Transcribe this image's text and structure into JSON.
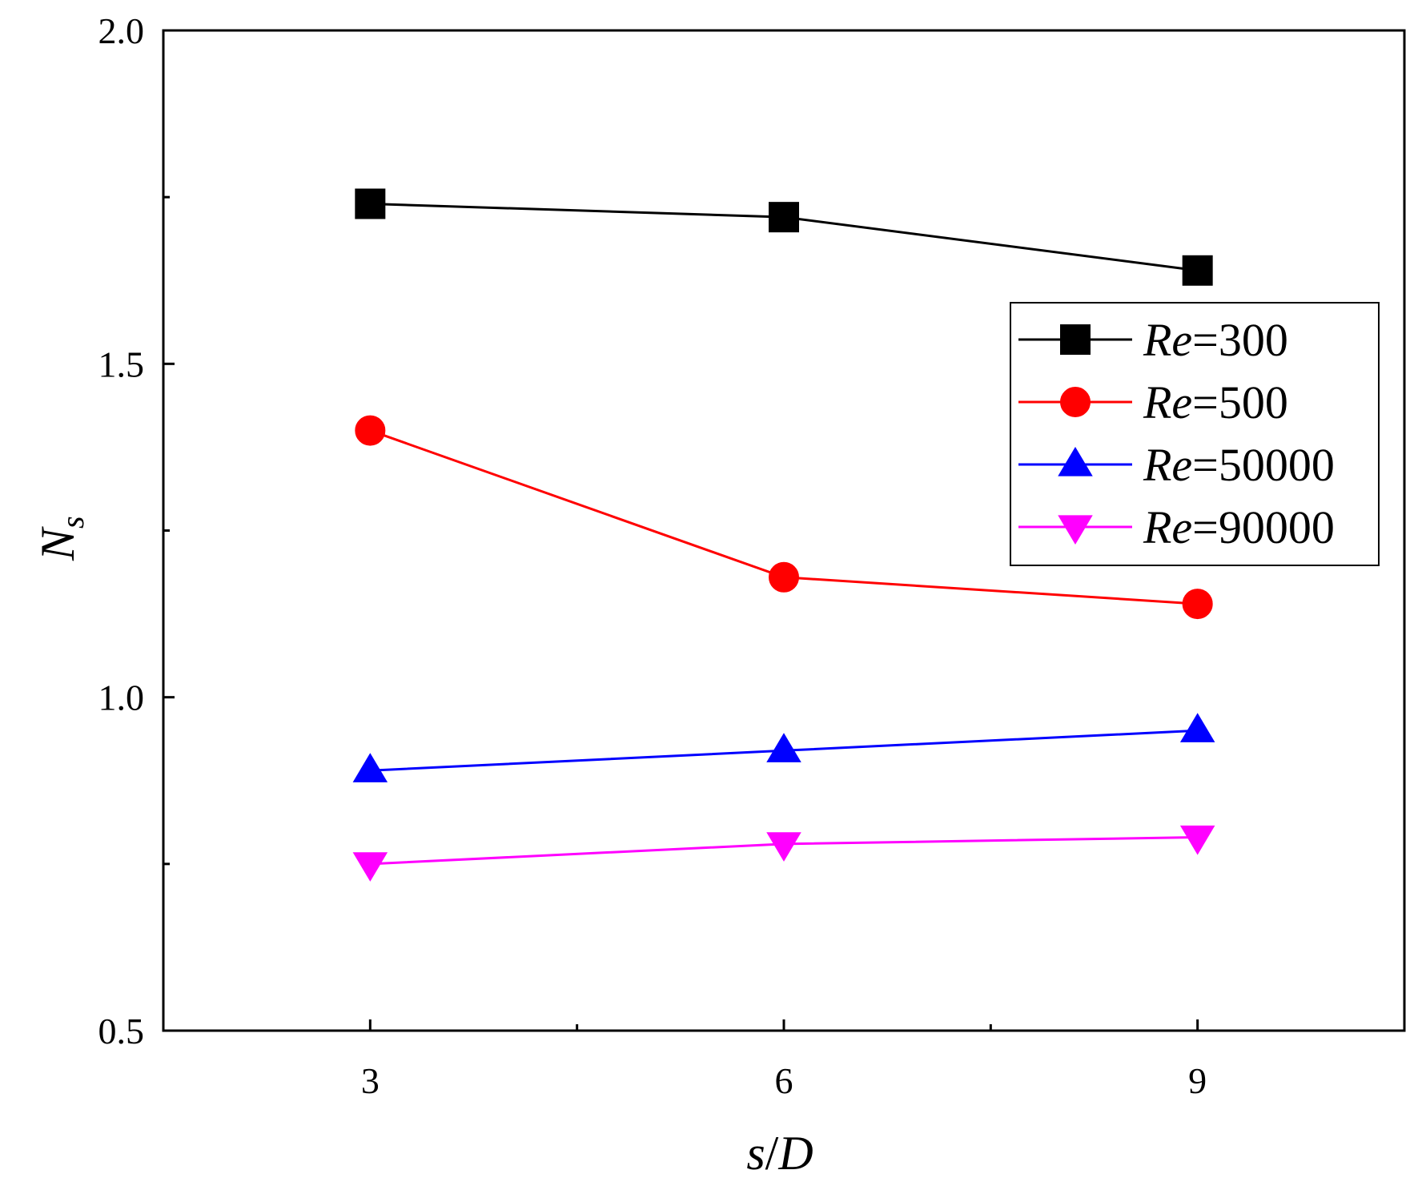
{
  "chart_data": {
    "type": "line",
    "xlabel": {
      "var": "s",
      "sep": "/",
      "denom": "D"
    },
    "ylabel": {
      "main": "N",
      "sub": "s"
    },
    "xlim": [
      1.5,
      10.5
    ],
    "ylim": [
      0.5,
      2.0
    ],
    "x_ticks": [
      3,
      6,
      9
    ],
    "x_minor_ticks": [
      4.5,
      7.5
    ],
    "y_ticks": [
      0.5,
      1.0,
      1.5,
      2.0
    ],
    "y_tick_labels": [
      "0.5",
      "1.0",
      "1.5",
      "2.0"
    ],
    "y_minor_ticks": [
      0.75,
      1.25,
      1.75
    ],
    "legend_position": "right",
    "x": [
      3,
      6,
      9
    ],
    "series": [
      {
        "name_prefix": "Re",
        "name_value": "=300",
        "color": "#000000",
        "marker": "square",
        "values": [
          1.74,
          1.72,
          1.64
        ]
      },
      {
        "name_prefix": "Re",
        "name_value": "=500",
        "color": "#ff0000",
        "marker": "circle",
        "values": [
          1.4,
          1.18,
          1.14
        ]
      },
      {
        "name_prefix": "Re",
        "name_value": "=50000",
        "color": "#0000ff",
        "marker": "triangle-up",
        "values": [
          0.89,
          0.92,
          0.95
        ]
      },
      {
        "name_prefix": "Re",
        "name_value": "=90000",
        "color": "#ff00ff",
        "marker": "triangle-down",
        "values": [
          0.75,
          0.78,
          0.79
        ]
      }
    ]
  }
}
